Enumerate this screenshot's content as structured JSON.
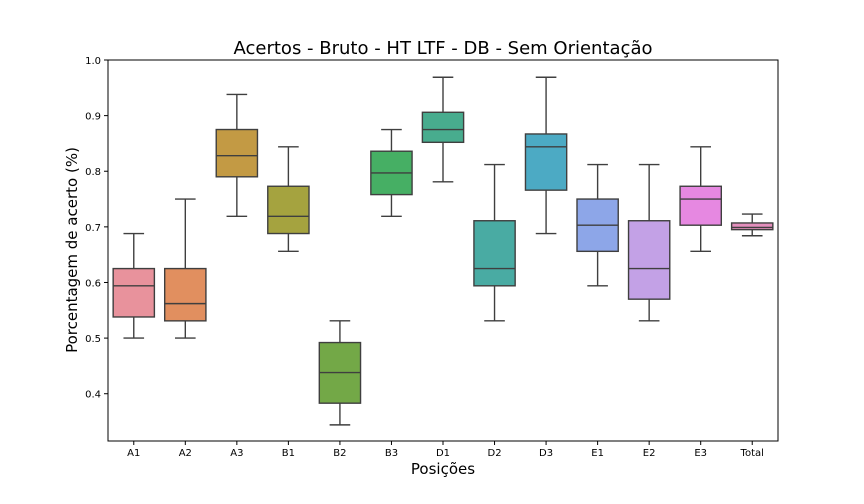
{
  "chart_data": {
    "type": "box",
    "title": "Acertos - Bruto - HT LTF - DB - Sem Orientação",
    "xlabel": "Posições",
    "ylabel": "Porcentagem de acerto (%)",
    "ylim": [
      0.315,
      1.0
    ],
    "yticks": [
      0.4,
      0.5,
      0.6,
      0.7,
      0.8,
      0.9,
      1.0
    ],
    "grid": false,
    "categories": [
      "A1",
      "A2",
      "A3",
      "B1",
      "B2",
      "B3",
      "D1",
      "D2",
      "D3",
      "E1",
      "E2",
      "E3",
      "Total"
    ],
    "boxes": [
      {
        "min": 0.5,
        "q1": 0.538,
        "median": 0.594,
        "q3": 0.625,
        "max": 0.688,
        "color": "#e8929c"
      },
      {
        "min": 0.5,
        "q1": 0.531,
        "median": 0.562,
        "q3": 0.625,
        "max": 0.75,
        "color": "#e18f5f"
      },
      {
        "min": 0.719,
        "q1": 0.79,
        "median": 0.828,
        "q3": 0.875,
        "max": 0.938,
        "color": "#c39a44"
      },
      {
        "min": 0.656,
        "q1": 0.688,
        "median": 0.719,
        "q3": 0.773,
        "max": 0.844,
        "color": "#a5a33f"
      },
      {
        "min": 0.344,
        "q1": 0.383,
        "median": 0.438,
        "q3": 0.492,
        "max": 0.531,
        "color": "#73a847"
      },
      {
        "min": 0.719,
        "q1": 0.758,
        "median": 0.797,
        "q3": 0.836,
        "max": 0.875,
        "color": "#46af64"
      },
      {
        "min": 0.781,
        "q1": 0.852,
        "median": 0.875,
        "q3": 0.906,
        "max": 0.969,
        "color": "#48ac8e"
      },
      {
        "min": 0.531,
        "q1": 0.594,
        "median": 0.625,
        "q3": 0.711,
        "max": 0.812,
        "color": "#49aba3"
      },
      {
        "min": 0.688,
        "q1": 0.766,
        "median": 0.844,
        "q3": 0.867,
        "max": 0.969,
        "color": "#4caac4"
      },
      {
        "min": 0.594,
        "q1": 0.656,
        "median": 0.703,
        "q3": 0.75,
        "max": 0.812,
        "color": "#8da6e8"
      },
      {
        "min": 0.531,
        "q1": 0.57,
        "median": 0.625,
        "q3": 0.711,
        "max": 0.812,
        "color": "#c3a1e6"
      },
      {
        "min": 0.656,
        "q1": 0.703,
        "median": 0.75,
        "q3": 0.773,
        "max": 0.844,
        "color": "#e688e1"
      },
      {
        "min": 0.684,
        "q1": 0.695,
        "median": 0.699,
        "q3": 0.707,
        "max": 0.723,
        "color": "#e48fbd"
      }
    ]
  }
}
